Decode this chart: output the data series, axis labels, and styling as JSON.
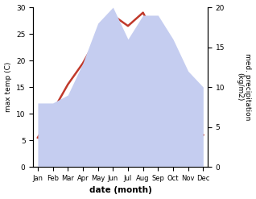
{
  "months": [
    "Jan",
    "Feb",
    "Mar",
    "Apr",
    "May",
    "Jun",
    "Jul",
    "Aug",
    "Sep",
    "Oct",
    "Nov",
    "Dec"
  ],
  "temp": [
    5.5,
    10.5,
    15.5,
    19.5,
    24.5,
    28.5,
    26.5,
    29.0,
    23.5,
    16.0,
    8.0,
    6.0
  ],
  "precip": [
    8.0,
    8.0,
    9.0,
    13.0,
    18.0,
    20.0,
    16.0,
    19.0,
    19.0,
    16.0,
    12.0,
    10.0
  ],
  "temp_color": "#c0392b",
  "precip_fill_color": "#c5cdf0",
  "temp_ylim": [
    0,
    30
  ],
  "temp_yticks": [
    0,
    5,
    10,
    15,
    20,
    25,
    30
  ],
  "precip_ylim": [
    0,
    20
  ],
  "precip_yticks": [
    0,
    5,
    10,
    15,
    20
  ],
  "xlabel": "date (month)",
  "ylabel_left": "max temp (C)",
  "ylabel_right": "med. precipitation\n(kg/m2)",
  "background_color": "#ffffff"
}
